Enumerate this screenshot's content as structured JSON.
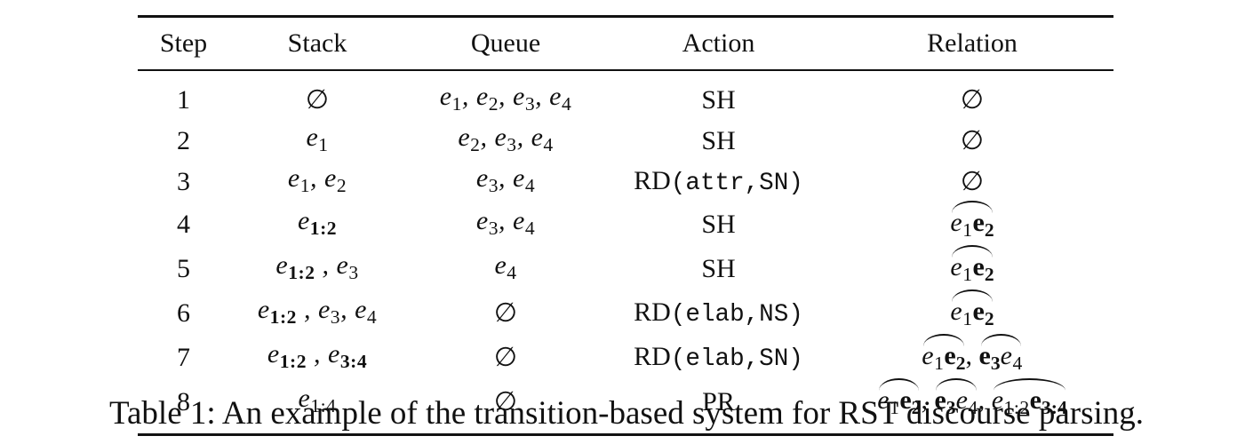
{
  "table": {
    "headers": [
      "Step",
      "Stack",
      "Queue",
      "Action",
      "Relation"
    ],
    "rows": [
      {
        "step": "1",
        "stack": "∅",
        "queue": "e1, e2, e3, e4",
        "action": "SH",
        "relation": "∅"
      },
      {
        "step": "2",
        "stack": "e1",
        "queue": "e2, e3, e4",
        "action": "SH",
        "relation": "∅"
      },
      {
        "step": "3",
        "stack": "e1, e2",
        "queue": "e3, e4",
        "action": "RD(attr,SN)",
        "relation": "∅"
      },
      {
        "step": "4",
        "stack": "e1:2",
        "queue": "e3, e4",
        "action": "SH",
        "relation": "e1e2"
      },
      {
        "step": "5",
        "stack": "e1:2 , e3",
        "queue": "e4",
        "action": "SH",
        "relation": "e1e2"
      },
      {
        "step": "6",
        "stack": "e1:2 , e3, e4",
        "queue": "∅",
        "action": "RD(elab,NS)",
        "relation": "e1e2"
      },
      {
        "step": "7",
        "stack": "e1:2 , e3:4",
        "queue": "∅",
        "action": "RD(elab,SN)",
        "relation": "e1e2, e3e4"
      },
      {
        "step": "8",
        "stack": "e1:4",
        "queue": "∅",
        "action": "PR",
        "relation": "e1e2, e3e4, e1:2e3:4"
      }
    ]
  },
  "caption": "Table 1: An example of the transition-based system for RST discourse parsing."
}
